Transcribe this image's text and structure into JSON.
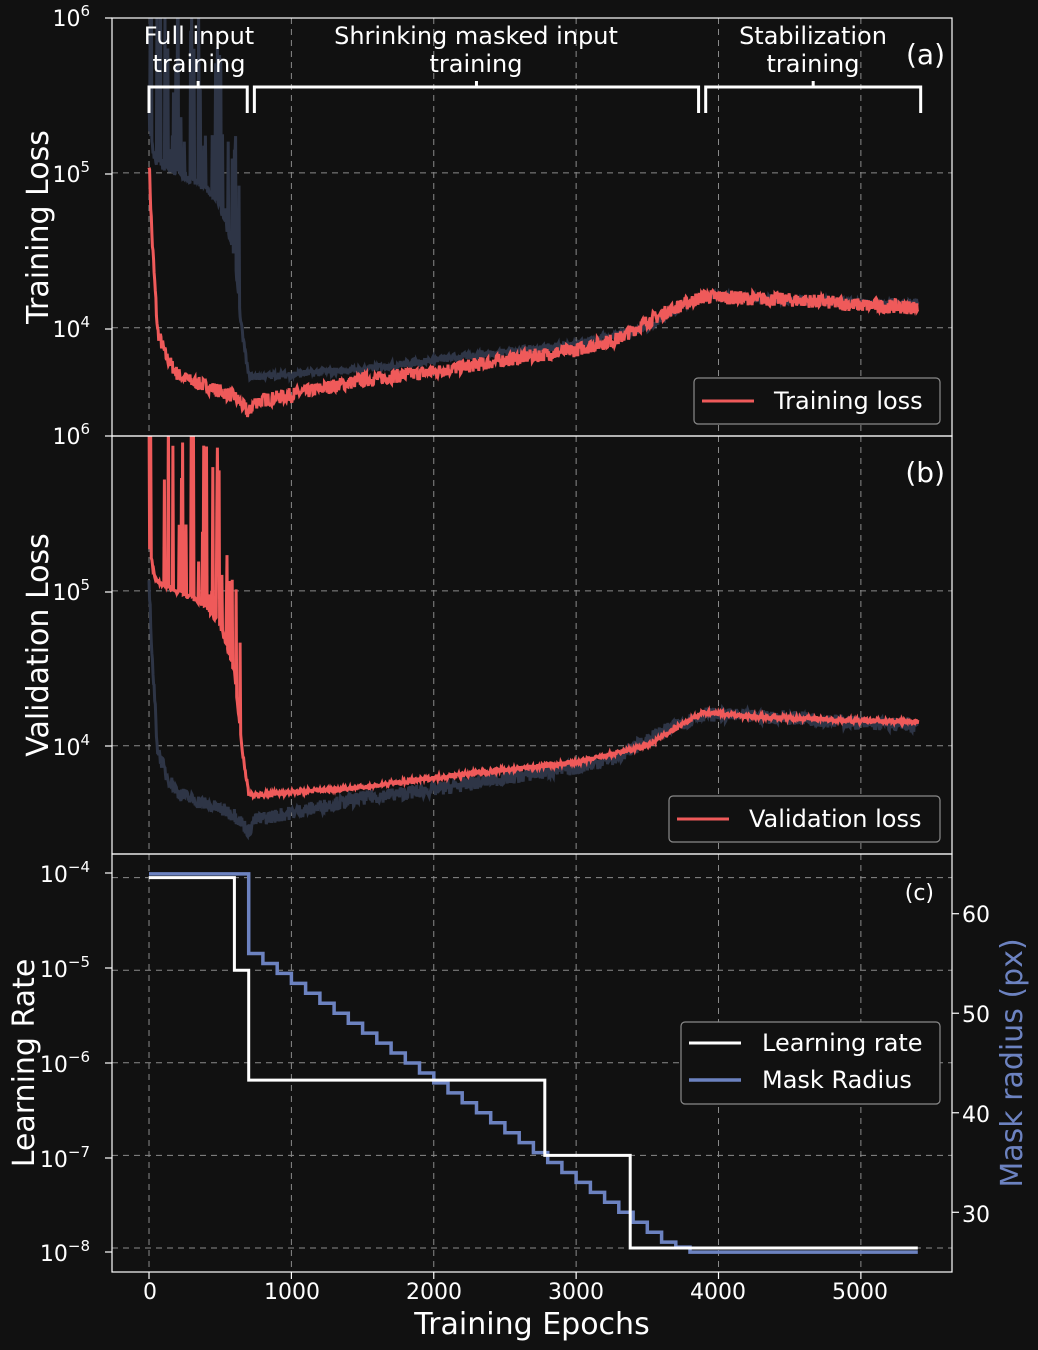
{
  "figure": {
    "x_label": "Training Epochs",
    "x_ticks": [
      0,
      1000,
      2000,
      3000,
      4000,
      5000
    ],
    "x_tick_labels": [
      "0",
      "1000",
      "2000",
      "3000",
      "4000",
      "5000"
    ],
    "x_range": [
      -260,
      5640
    ]
  },
  "phases": [
    {
      "label_line1": "Full input",
      "label_line2": "training",
      "start_epoch": 0,
      "end_epoch": 690
    },
    {
      "label_line1": "Shrinking masked input",
      "label_line2": "training",
      "start_epoch": 740,
      "end_epoch": 3860
    },
    {
      "label_line1": "Stabilization",
      "label_line2": "training",
      "start_epoch": 3910,
      "end_epoch": 5420
    }
  ],
  "panels": {
    "a": {
      "tag": "(a)",
      "ylabel": "Training Loss",
      "ytick_labels": [
        {
          "base": "10",
          "exp": "6",
          "value": 1000000
        },
        {
          "base": "10",
          "exp": "5",
          "value": 100000
        },
        {
          "base": "10",
          "exp": "4",
          "value": 10000
        }
      ],
      "legend": "Training loss"
    },
    "b": {
      "tag": "(b)",
      "ylabel": "Validation Loss",
      "ytick_labels": [
        {
          "base": "10",
          "exp": "6",
          "value": 1000000
        },
        {
          "base": "10",
          "exp": "5",
          "value": 100000
        },
        {
          "base": "10",
          "exp": "4",
          "value": 10000
        }
      ],
      "legend": "Validation loss"
    },
    "c": {
      "tag": "(c)",
      "ylabel": "Learning Rate",
      "ylabel_right": "Mask radius (px)",
      "ytick_labels": [
        {
          "base": "10",
          "exp": "−4",
          "value": 0.0001
        },
        {
          "base": "10",
          "exp": "−5",
          "value": 1e-05
        },
        {
          "base": "10",
          "exp": "−6",
          "value": 1e-06
        },
        {
          "base": "10",
          "exp": "−7",
          "value": 1e-07
        },
        {
          "base": "10",
          "exp": "−8",
          "value": 1e-08
        }
      ],
      "ytick_right_labels": [
        "60",
        "50",
        "40",
        "30"
      ],
      "legend_lr": "Learning rate",
      "legend_mask": "Mask Radius"
    }
  },
  "colors": {
    "background": "#111111",
    "loss_red": "#ef5a5a",
    "shadow_navy": "#2e3546",
    "mask_blue": "#6c82c0",
    "lr_white": "#ffffff",
    "grid": "#8a8a8a"
  },
  "chart_data": [
    {
      "type": "line",
      "title": "(a)",
      "xlabel": "Training Epochs",
      "ylabel": "Training Loss",
      "yscale": "log",
      "ylim": [
        2000,
        1000000
      ],
      "series": [
        {
          "name": "Training loss",
          "color": "#ef5a5a",
          "x": [
            0,
            20,
            60,
            120,
            200,
            300,
            400,
            500,
            600,
            650,
            700,
            740,
            800,
            1000,
            1500,
            2000,
            2500,
            3000,
            3300,
            3500,
            3700,
            3900,
            4200,
            4600,
            5000,
            5400
          ],
          "y": [
            120000,
            40000,
            9500,
            6500,
            5000,
            4500,
            4200,
            3900,
            3600,
            3200,
            2800,
            3300,
            3400,
            3700,
            4600,
            5200,
            6200,
            7200,
            8500,
            11000,
            13500,
            16000,
            15500,
            15000,
            14000,
            13500
          ]
        },
        {
          "name": "Validation loss (shadow)",
          "color": "#2e3546",
          "x": [
            0,
            40,
            100,
            200,
            300,
            400,
            500,
            600,
            650,
            700,
            740,
            800,
            1000,
            1500,
            2000,
            2500,
            3000,
            3300,
            3500,
            3700,
            3900,
            4200,
            4600,
            5000,
            5400
          ],
          "y": [
            200000,
            120000,
            110000,
            100000,
            90000,
            80000,
            60000,
            30000,
            10000,
            4900,
            4800,
            4850,
            5000,
            5400,
            6200,
            7000,
            7800,
            9000,
            10000,
            13000,
            16500,
            15500,
            15000,
            14500,
            14300
          ]
        }
      ]
    },
    {
      "type": "line",
      "title": "(b)",
      "xlabel": "Training Epochs",
      "ylabel": "Validation Loss",
      "yscale": "log",
      "ylim": [
        2000,
        1000000
      ],
      "series": [
        {
          "name": "Validation loss",
          "color": "#ef5a5a",
          "x": [
            0,
            40,
            100,
            200,
            300,
            400,
            500,
            600,
            650,
            700,
            740,
            800,
            1000,
            1500,
            2000,
            2500,
            3000,
            3300,
            3500,
            3700,
            3900,
            4200,
            4600,
            5000,
            5400
          ],
          "y": [
            200000,
            120000,
            110000,
            100000,
            90000,
            80000,
            60000,
            30000,
            10000,
            4900,
            4800,
            4850,
            5000,
            5400,
            6200,
            7000,
            7800,
            9000,
            10000,
            13000,
            16500,
            15500,
            15000,
            14500,
            14300
          ]
        },
        {
          "name": "Training loss (shadow)",
          "color": "#2e3546",
          "x": [
            0,
            20,
            60,
            120,
            200,
            300,
            400,
            500,
            600,
            650,
            700,
            740,
            800,
            1000,
            1500,
            2000,
            2500,
            3000,
            3300,
            3500,
            3700,
            3900,
            4200,
            4600,
            5000,
            5400
          ],
          "y": [
            120000,
            40000,
            9500,
            6500,
            5000,
            4500,
            4200,
            3900,
            3600,
            3200,
            2800,
            3300,
            3400,
            3700,
            4600,
            5200,
            6200,
            7200,
            8500,
            11000,
            13500,
            16000,
            15500,
            15000,
            14000,
            13500
          ]
        }
      ]
    },
    {
      "type": "line",
      "title": "(c)",
      "xlabel": "Training Epochs",
      "ylabel": "Learning Rate",
      "yscale": "log",
      "ylim": [
        5.5e-09,
        0.00018
      ],
      "ylabel_right": "Mask radius (px)",
      "ylim_right": [
        24,
        66
      ],
      "series": [
        {
          "name": "Learning rate",
          "color": "#ffffff",
          "axis": "left",
          "step": true,
          "x": [
            0,
            600,
            600,
            700,
            700,
            2780,
            2780,
            3380,
            3380,
            5400
          ],
          "y": [
            0.0001,
            0.0001,
            1e-05,
            1e-05,
            6.5e-07,
            6.5e-07,
            1e-07,
            1e-07,
            1e-08,
            1e-08
          ]
        },
        {
          "name": "Mask Radius",
          "color": "#6c82c0",
          "axis": "right",
          "step": true,
          "x": [
            0,
            700,
            700,
            800,
            900,
            1000,
            1100,
            1200,
            1300,
            1400,
            1500,
            1600,
            1700,
            1800,
            1900,
            2000,
            2100,
            2200,
            2300,
            2400,
            2500,
            2600,
            2700,
            2800,
            2900,
            3000,
            3100,
            3200,
            3300,
            3400,
            3500,
            3600,
            3700,
            3800,
            3900,
            5400
          ],
          "y": [
            64,
            64,
            56,
            55,
            54,
            53,
            52,
            51,
            50,
            49,
            48,
            47,
            46,
            45,
            44,
            43,
            42,
            41,
            40,
            39,
            38,
            37,
            36,
            35,
            34,
            33,
            32,
            31,
            30,
            29,
            28,
            27,
            26.5,
            26,
            26,
            26
          ]
        }
      ]
    }
  ]
}
